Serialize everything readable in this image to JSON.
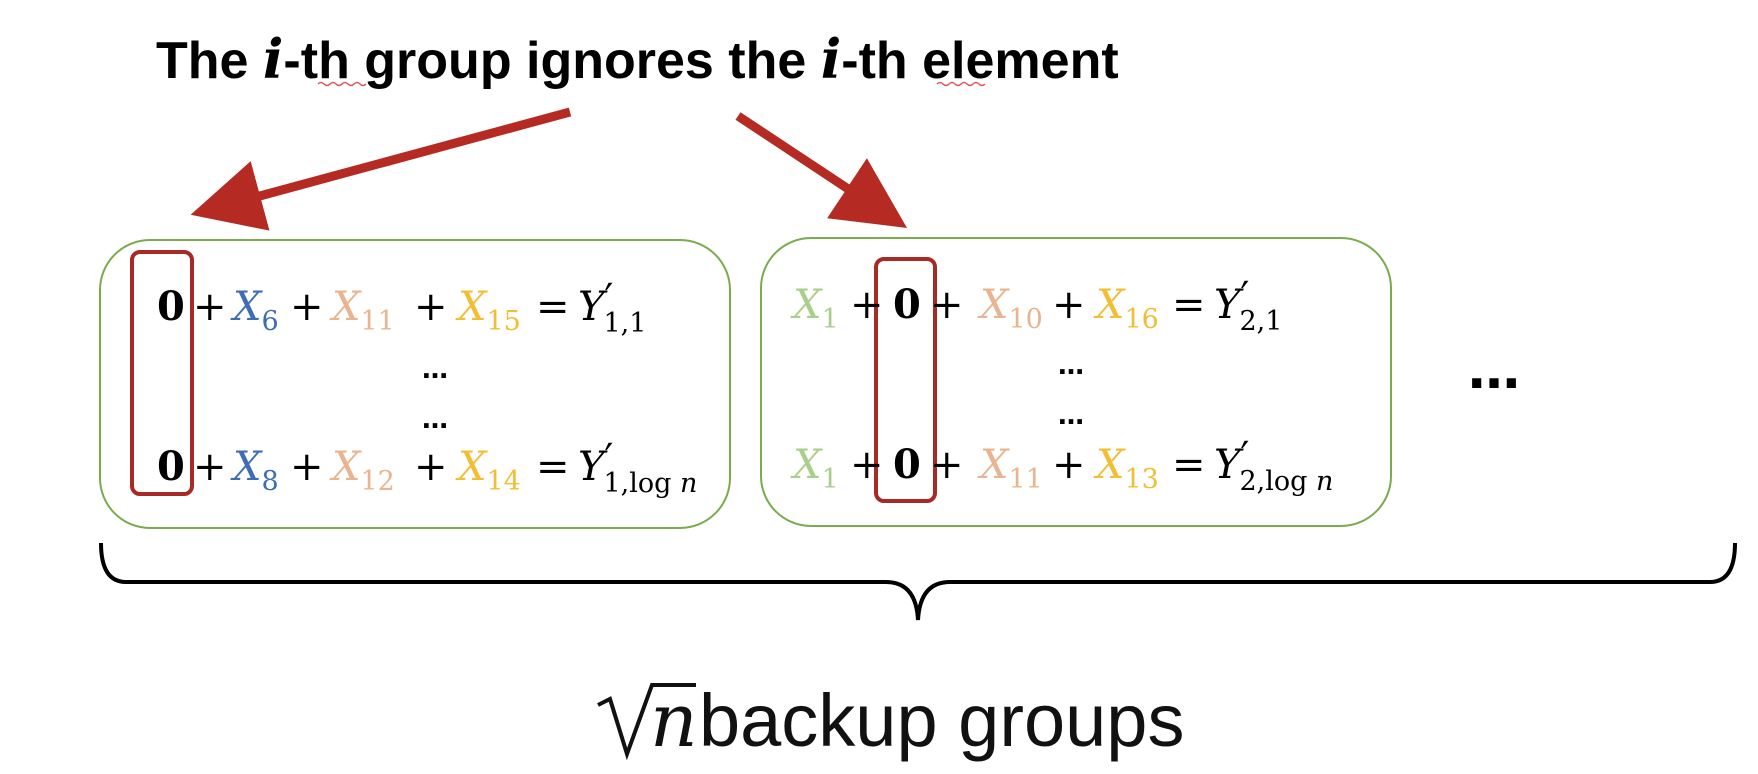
{
  "colors": {
    "arrow": "#b52a22",
    "box_border": "#7aab4c",
    "highlight_border": "#a82a24",
    "x_blue": "#3d6db5",
    "x_peach": "#e9b48f",
    "x_yellow": "#f2be33",
    "x_green": "#a9cf8b",
    "text": "#000000",
    "squiggle": "#e05555"
  },
  "title": {
    "part1": "The ",
    "i1": "i",
    "part2": "-",
    "th1": "th",
    "part3": " group ignores the ",
    "i2": "i",
    "part4": "-",
    "th2": "th",
    "part5": " element"
  },
  "groups": [
    {
      "rows": [
        {
          "zero": "0",
          "terms": [
            {
              "sym": "X",
              "sub": "6",
              "color": "x_blue"
            },
            {
              "sym": "X",
              "sub": "11",
              "color": "x_peach"
            },
            {
              "sym": "X",
              "sub": "15",
              "color": "x_yellow"
            }
          ],
          "rhs": {
            "sym": "Y",
            "prime": "′",
            "sub": "1,1",
            "subit": ""
          }
        },
        {
          "zero": "0",
          "terms": [
            {
              "sym": "X",
              "sub": "8",
              "color": "x_blue"
            },
            {
              "sym": "X",
              "sub": "12",
              "color": "x_peach"
            },
            {
              "sym": "X",
              "sub": "14",
              "color": "x_yellow"
            }
          ],
          "rhs": {
            "sym": "Y",
            "prime": "′",
            "sub": "1,log ",
            "subit": "n"
          }
        }
      ],
      "dots": [
        "…",
        "…"
      ]
    },
    {
      "rows": [
        {
          "lead": {
            "sym": "X",
            "sub": "1",
            "color": "x_green"
          },
          "zero": "0",
          "terms": [
            {
              "sym": "X",
              "sub": "10",
              "color": "x_peach"
            },
            {
              "sym": "X",
              "sub": "16",
              "color": "x_yellow"
            }
          ],
          "rhs": {
            "sym": "Y",
            "prime": "′",
            "sub": "2,1",
            "subit": ""
          }
        },
        {
          "lead": {
            "sym": "X",
            "sub": "1",
            "color": "x_green"
          },
          "zero": "0",
          "terms": [
            {
              "sym": "X",
              "sub": "11",
              "color": "x_peach"
            },
            {
              "sym": "X",
              "sub": "13",
              "color": "x_yellow"
            }
          ],
          "rhs": {
            "sym": "Y",
            "prime": "′",
            "sub": "2,log ",
            "subit": "n"
          }
        }
      ],
      "dots": [
        "…",
        "…"
      ]
    }
  ],
  "operators": {
    "plus": "+",
    "equals": "="
  },
  "ellipsis": "…",
  "caption": {
    "radicand": "n",
    "text": " backup groups"
  }
}
